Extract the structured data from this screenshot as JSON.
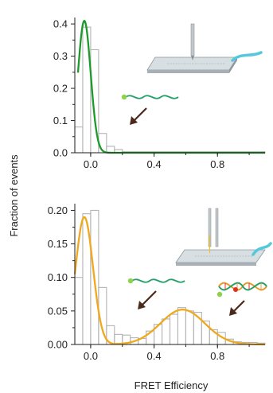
{
  "figure": {
    "ylabel": "Fraction of events",
    "xlabel": "FRET Efficiency"
  },
  "colors": {
    "top_fit": "#1e9a2a",
    "bottom_fit": "#f0a81c",
    "histogram": "#b4b4b4",
    "arrow": "#4a2a1c",
    "strand_green": "#26a06a",
    "strand_orange": "#e89a2a",
    "dye_green": "#8cd24a",
    "dye_red": "#e0301e",
    "slide_tube": "#56c8dc",
    "axis": "#222222"
  },
  "chart_data": [
    {
      "type": "bar",
      "panel": "top",
      "description_series": [
        "histogram",
        "gaussian fit"
      ],
      "xlim": [
        -0.1,
        1.1
      ],
      "ylim": [
        0,
        0.42
      ],
      "x_ticks": [
        "0.0",
        "0.4",
        "0.8"
      ],
      "x_tick_values": [
        0.0,
        0.4,
        0.8
      ],
      "y_ticks": [
        "0.0",
        "0.1",
        "0.2",
        "0.3",
        "0.4"
      ],
      "y_tick_values": [
        0.0,
        0.1,
        0.2,
        0.3,
        0.4
      ],
      "histogram": {
        "bin_edges": [
          -0.1,
          -0.05,
          0.0,
          0.05,
          0.1,
          0.15,
          0.2,
          1.1
        ],
        "values": [
          0.08,
          0.39,
          0.32,
          0.06,
          0.02,
          0.01,
          0.003
        ]
      },
      "fit_curve": [
        {
          "peak_x": -0.04,
          "peak_y": 0.41,
          "sigma": 0.04
        }
      ],
      "fit_x_start": -0.08
    },
    {
      "type": "bar",
      "panel": "bottom",
      "xlim": [
        -0.1,
        1.1
      ],
      "ylim": [
        0,
        0.21
      ],
      "x_ticks": [
        "0.0",
        "0.4",
        "0.8"
      ],
      "x_tick_values": [
        0.0,
        0.4,
        0.8
      ],
      "y_ticks": [
        "0.00",
        "0.05",
        "0.10",
        "0.15",
        "0.20"
      ],
      "y_tick_values": [
        0.0,
        0.05,
        0.1,
        0.15,
        0.2
      ],
      "histogram": {
        "bin_edges": [
          -0.1,
          -0.05,
          0.0,
          0.05,
          0.1,
          0.15,
          0.2,
          0.25,
          0.3,
          0.35,
          0.4,
          0.45,
          0.5,
          0.55,
          0.6,
          0.65,
          0.7,
          0.75,
          0.8,
          0.85,
          0.9,
          0.95,
          1.0,
          1.05,
          1.1
        ],
        "values": [
          0.1,
          0.195,
          0.2,
          0.085,
          0.028,
          0.015,
          0.014,
          0.01,
          0.009,
          0.02,
          0.03,
          0.038,
          0.045,
          0.055,
          0.05,
          0.048,
          0.035,
          0.022,
          0.018,
          0.008,
          0.004,
          0.003,
          0.003,
          0.002
        ]
      },
      "fit_curve": [
        {
          "peak_x": -0.04,
          "peak_y": 0.19,
          "sigma": 0.055
        },
        {
          "peak_x": 0.58,
          "peak_y": 0.052,
          "sigma": 0.14
        }
      ],
      "fit_x_start": -0.1
    }
  ]
}
